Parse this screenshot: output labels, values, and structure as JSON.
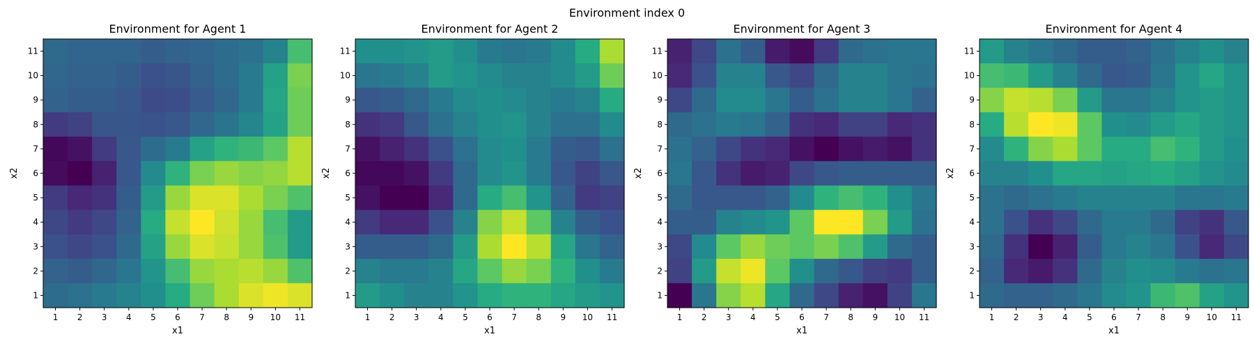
{
  "figure": {
    "suptitle": "Environment index 0"
  },
  "chart_data": [
    {
      "type": "heatmap",
      "title": "Environment for Agent 1",
      "xlabel": "x1",
      "ylabel": "x2",
      "x_ticks": [
        1,
        2,
        3,
        4,
        5,
        6,
        7,
        8,
        9,
        10,
        11
      ],
      "y_ticks": [
        1,
        2,
        3,
        4,
        5,
        6,
        7,
        8,
        9,
        10,
        11
      ],
      "colormap": "viridis",
      "value_range": [
        0,
        1
      ],
      "grid": false,
      "values": [
        [
          0.35,
          0.33,
          0.33,
          0.33,
          0.3,
          0.32,
          0.34,
          0.36,
          0.38,
          0.45,
          0.7
        ],
        [
          0.34,
          0.32,
          0.32,
          0.3,
          0.25,
          0.27,
          0.32,
          0.36,
          0.42,
          0.58,
          0.8
        ],
        [
          0.32,
          0.3,
          0.3,
          0.28,
          0.23,
          0.24,
          0.29,
          0.34,
          0.42,
          0.6,
          0.78
        ],
        [
          0.18,
          0.2,
          0.27,
          0.27,
          0.26,
          0.28,
          0.34,
          0.39,
          0.46,
          0.58,
          0.78
        ],
        [
          0.02,
          0.05,
          0.18,
          0.28,
          0.36,
          0.42,
          0.58,
          0.65,
          0.68,
          0.75,
          0.9
        ],
        [
          0.03,
          0.0,
          0.1,
          0.28,
          0.48,
          0.65,
          0.8,
          0.85,
          0.82,
          0.84,
          0.9
        ],
        [
          0.18,
          0.12,
          0.15,
          0.3,
          0.55,
          0.85,
          0.95,
          0.95,
          0.88,
          0.8,
          0.72
        ],
        [
          0.22,
          0.18,
          0.22,
          0.32,
          0.62,
          0.92,
          1.0,
          0.93,
          0.85,
          0.7,
          0.55
        ],
        [
          0.25,
          0.22,
          0.25,
          0.35,
          0.58,
          0.85,
          0.95,
          0.92,
          0.85,
          0.72,
          0.55
        ],
        [
          0.32,
          0.3,
          0.34,
          0.4,
          0.52,
          0.7,
          0.85,
          0.88,
          0.9,
          0.85,
          0.72
        ],
        [
          0.36,
          0.38,
          0.42,
          0.45,
          0.5,
          0.62,
          0.78,
          0.88,
          0.95,
          0.98,
          0.95
        ]
      ]
    },
    {
      "type": "heatmap",
      "title": "Environment for Agent 2",
      "xlabel": "x1",
      "ylabel": "x2",
      "x_ticks": [
        1,
        2,
        3,
        4,
        5,
        6,
        7,
        8,
        9,
        10,
        11
      ],
      "y_ticks": [
        1,
        2,
        3,
        4,
        5,
        6,
        7,
        8,
        9,
        10,
        11
      ],
      "colormap": "viridis",
      "value_range": [
        0,
        1
      ],
      "grid": false,
      "values": [
        [
          0.5,
          0.5,
          0.52,
          0.55,
          0.5,
          0.42,
          0.4,
          0.42,
          0.48,
          0.62,
          0.88
        ],
        [
          0.4,
          0.42,
          0.45,
          0.55,
          0.52,
          0.48,
          0.45,
          0.45,
          0.48,
          0.55,
          0.78
        ],
        [
          0.28,
          0.3,
          0.35,
          0.42,
          0.48,
          0.5,
          0.48,
          0.45,
          0.42,
          0.45,
          0.62
        ],
        [
          0.15,
          0.18,
          0.28,
          0.38,
          0.45,
          0.5,
          0.52,
          0.45,
          0.38,
          0.38,
          0.48
        ],
        [
          0.05,
          0.1,
          0.15,
          0.25,
          0.38,
          0.48,
          0.5,
          0.42,
          0.3,
          0.28,
          0.38
        ],
        [
          0.02,
          0.02,
          0.05,
          0.18,
          0.35,
          0.48,
          0.52,
          0.42,
          0.28,
          0.2,
          0.28
        ],
        [
          0.05,
          0.0,
          0.0,
          0.12,
          0.35,
          0.62,
          0.7,
          0.52,
          0.32,
          0.18,
          0.2
        ],
        [
          0.18,
          0.12,
          0.12,
          0.25,
          0.45,
          0.82,
          0.92,
          0.75,
          0.45,
          0.3,
          0.25
        ],
        [
          0.3,
          0.3,
          0.3,
          0.35,
          0.55,
          0.88,
          1.0,
          0.9,
          0.6,
          0.4,
          0.32
        ],
        [
          0.45,
          0.42,
          0.42,
          0.45,
          0.6,
          0.75,
          0.85,
          0.8,
          0.65,
          0.5,
          0.42
        ],
        [
          0.55,
          0.5,
          0.45,
          0.45,
          0.52,
          0.62,
          0.65,
          0.65,
          0.6,
          0.55,
          0.52
        ]
      ]
    },
    {
      "type": "heatmap",
      "title": "Environment for Agent 3",
      "xlabel": "x1",
      "ylabel": "x2",
      "x_ticks": [
        1,
        2,
        3,
        4,
        5,
        6,
        7,
        8,
        9,
        10,
        11
      ],
      "y_ticks": [
        1,
        2,
        3,
        4,
        5,
        6,
        7,
        8,
        9,
        10,
        11
      ],
      "colormap": "viridis",
      "value_range": [
        0,
        1
      ],
      "grid": false,
      "values": [
        [
          0.1,
          0.22,
          0.38,
          0.3,
          0.08,
          0.03,
          0.18,
          0.35,
          0.38,
          0.4,
          0.4
        ],
        [
          0.12,
          0.25,
          0.45,
          0.45,
          0.28,
          0.22,
          0.35,
          0.45,
          0.45,
          0.4,
          0.38
        ],
        [
          0.22,
          0.35,
          0.48,
          0.48,
          0.4,
          0.3,
          0.38,
          0.45,
          0.45,
          0.4,
          0.32
        ],
        [
          0.35,
          0.38,
          0.42,
          0.4,
          0.32,
          0.15,
          0.12,
          0.2,
          0.2,
          0.12,
          0.15
        ],
        [
          0.38,
          0.32,
          0.22,
          0.15,
          0.12,
          0.05,
          0.0,
          0.05,
          0.08,
          0.05,
          0.15
        ],
        [
          0.4,
          0.28,
          0.15,
          0.08,
          0.1,
          0.22,
          0.28,
          0.3,
          0.3,
          0.3,
          0.3
        ],
        [
          0.35,
          0.28,
          0.28,
          0.28,
          0.32,
          0.48,
          0.65,
          0.7,
          0.65,
          0.5,
          0.4
        ],
        [
          0.3,
          0.3,
          0.45,
          0.48,
          0.52,
          0.75,
          1.0,
          1.0,
          0.8,
          0.55,
          0.38
        ],
        [
          0.22,
          0.48,
          0.75,
          0.85,
          0.78,
          0.75,
          0.8,
          0.72,
          0.55,
          0.35,
          0.3
        ],
        [
          0.2,
          0.55,
          0.92,
          0.98,
          0.75,
          0.5,
          0.35,
          0.28,
          0.2,
          0.18,
          0.3
        ],
        [
          0.0,
          0.4,
          0.82,
          0.9,
          0.6,
          0.35,
          0.22,
          0.1,
          0.05,
          0.2,
          0.4
        ]
      ]
    },
    {
      "type": "heatmap",
      "title": "Environment for Agent 4",
      "xlabel": "x1",
      "ylabel": "x2",
      "x_ticks": [
        1,
        2,
        3,
        4,
        5,
        6,
        7,
        8,
        9,
        10,
        11
      ],
      "y_ticks": [
        1,
        2,
        3,
        4,
        5,
        6,
        7,
        8,
        9,
        10,
        11
      ],
      "colormap": "viridis",
      "value_range": [
        0,
        1
      ],
      "grid": false,
      "values": [
        [
          0.55,
          0.45,
          0.4,
          0.35,
          0.3,
          0.3,
          0.32,
          0.38,
          0.45,
          0.5,
          0.45
        ],
        [
          0.7,
          0.68,
          0.55,
          0.45,
          0.35,
          0.28,
          0.3,
          0.4,
          0.52,
          0.6,
          0.52
        ],
        [
          0.82,
          0.92,
          0.9,
          0.8,
          0.55,
          0.4,
          0.4,
          0.45,
          0.52,
          0.55,
          0.52
        ],
        [
          0.62,
          0.9,
          1.0,
          0.98,
          0.75,
          0.5,
          0.48,
          0.55,
          0.6,
          0.55,
          0.52
        ],
        [
          0.48,
          0.65,
          0.82,
          0.88,
          0.75,
          0.62,
          0.62,
          0.7,
          0.65,
          0.55,
          0.5
        ],
        [
          0.45,
          0.45,
          0.5,
          0.6,
          0.6,
          0.58,
          0.6,
          0.62,
          0.58,
          0.52,
          0.48
        ],
        [
          0.38,
          0.35,
          0.38,
          0.42,
          0.45,
          0.45,
          0.45,
          0.45,
          0.4,
          0.4,
          0.42
        ],
        [
          0.38,
          0.25,
          0.15,
          0.22,
          0.35,
          0.42,
          0.42,
          0.35,
          0.2,
          0.15,
          0.28
        ],
        [
          0.35,
          0.15,
          0.0,
          0.1,
          0.3,
          0.42,
          0.45,
          0.4,
          0.25,
          0.12,
          0.22
        ],
        [
          0.32,
          0.12,
          0.08,
          0.15,
          0.35,
          0.45,
          0.5,
          0.48,
          0.42,
          0.38,
          0.4
        ],
        [
          0.35,
          0.32,
          0.32,
          0.35,
          0.4,
          0.48,
          0.52,
          0.68,
          0.72,
          0.58,
          0.52
        ]
      ]
    }
  ]
}
